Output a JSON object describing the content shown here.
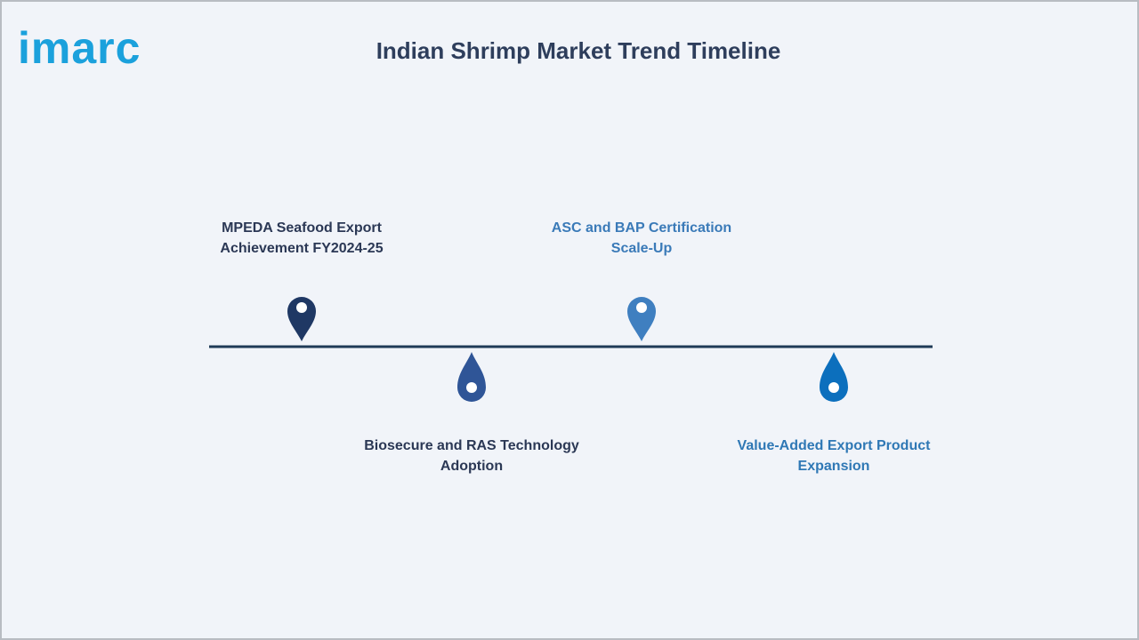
{
  "logo": "imarc",
  "title": "Indian Shrimp Market Trend Timeline",
  "events": [
    {
      "lines": [
        "MPEDA Seafood Export",
        "Achievement FY2024-25"
      ],
      "position": "above",
      "pin_color": "#1f3864",
      "text_color": "#2b3855"
    },
    {
      "lines": [
        "Biosecure and RAS Technology",
        "Adoption"
      ],
      "position": "below",
      "pin_color": "#2f5597",
      "text_color": "#2b3855"
    },
    {
      "lines": [
        "ASC and BAP Certification",
        "Scale-Up"
      ],
      "position": "above",
      "pin_color": "#3f7fc0",
      "text_color": "#3a7ab8"
    },
    {
      "lines": [
        "Value-Added Export Product",
        "Expansion"
      ],
      "position": "below",
      "pin_color": "#0c6fbd",
      "text_color": "#2f78b5"
    }
  ]
}
